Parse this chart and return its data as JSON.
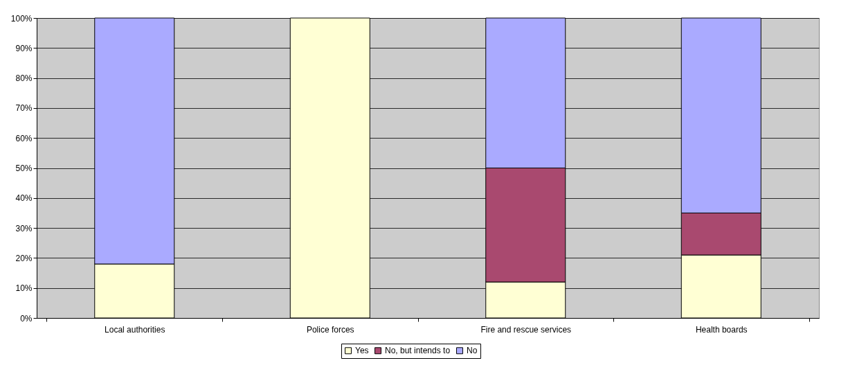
{
  "chart_data": {
    "type": "bar",
    "stacked": true,
    "categories": [
      "Local authorities",
      "Police forces",
      "Fire and rescue services",
      "Health boards"
    ],
    "series": [
      {
        "name": "Yes",
        "color": "#ffffd4",
        "values": [
          18,
          100,
          12,
          21
        ]
      },
      {
        "name": "No, but intends to",
        "color": "#a9496f",
        "values": [
          0,
          0,
          38,
          14
        ]
      },
      {
        "name": "No",
        "color": "#aaaaff",
        "values": [
          82,
          0,
          50,
          65
        ]
      }
    ],
    "ylim": [
      0,
      100
    ],
    "yticks": [
      {
        "value": 0,
        "label": "0%"
      },
      {
        "value": 10,
        "label": "10%"
      },
      {
        "value": 20,
        "label": "20%"
      },
      {
        "value": 30,
        "label": "30%"
      },
      {
        "value": 40,
        "label": "40%"
      },
      {
        "value": 50,
        "label": "50%"
      },
      {
        "value": 60,
        "label": "60%"
      },
      {
        "value": 70,
        "label": "70%"
      },
      {
        "value": 80,
        "label": "80%"
      },
      {
        "value": 90,
        "label": "90%"
      },
      {
        "value": 100,
        "label": "100%"
      }
    ],
    "grid": "y",
    "legend": "bottom"
  }
}
